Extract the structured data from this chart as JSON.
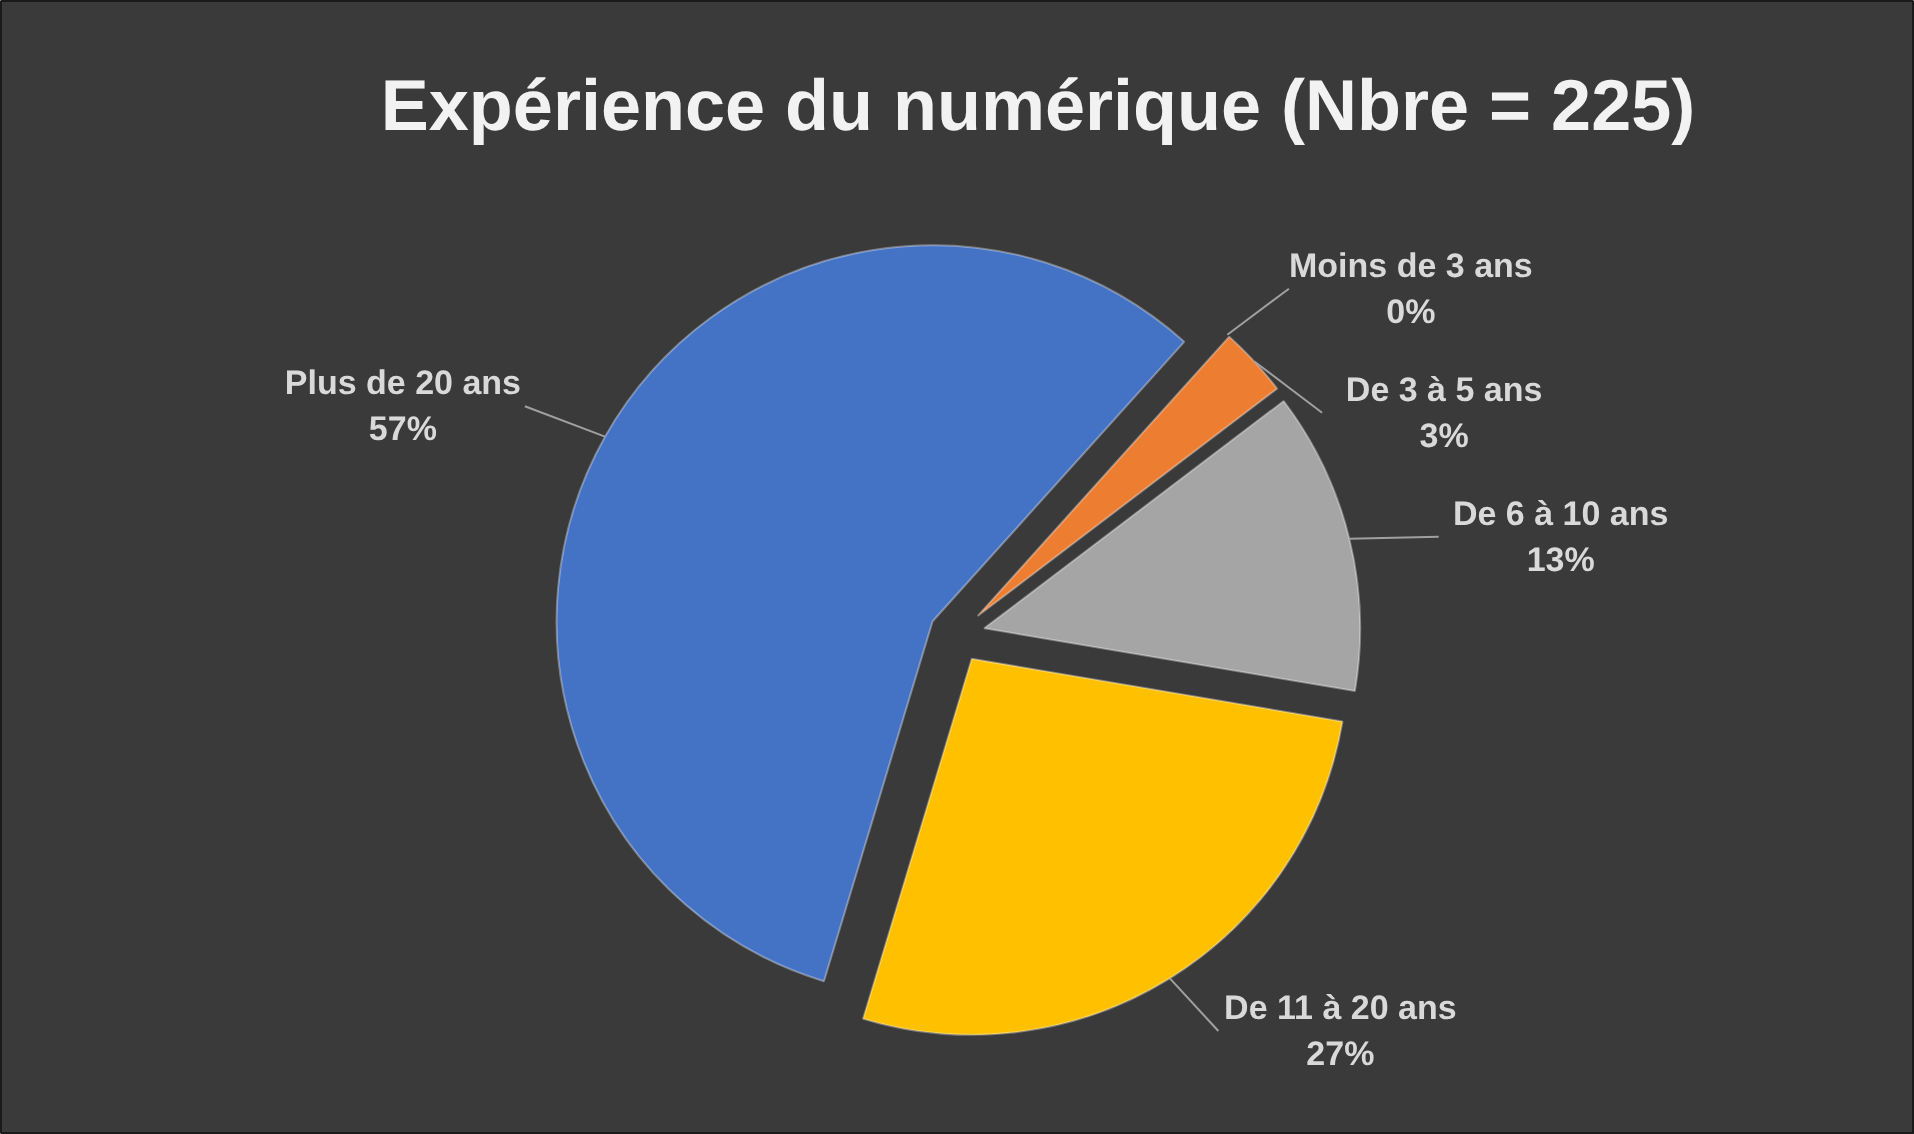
{
  "chart_data": {
    "type": "pie",
    "title": "Expérience du numérique (Nbre = 225)",
    "categories": [
      "Moins de 3 ans",
      "De 3 à 5 ans",
      "De 6 à 10 ans",
      "De 11 à 20 ans",
      "Plus de 20 ans"
    ],
    "values": [
      0,
      3,
      13,
      27,
      57
    ],
    "colors": [
      "#5b9bd5",
      "#ed7d31",
      "#a5a5a5",
      "#ffc000",
      "#4472c4"
    ],
    "value_labels": [
      "0%",
      "3%",
      "13%",
      "27%",
      "57%"
    ]
  }
}
